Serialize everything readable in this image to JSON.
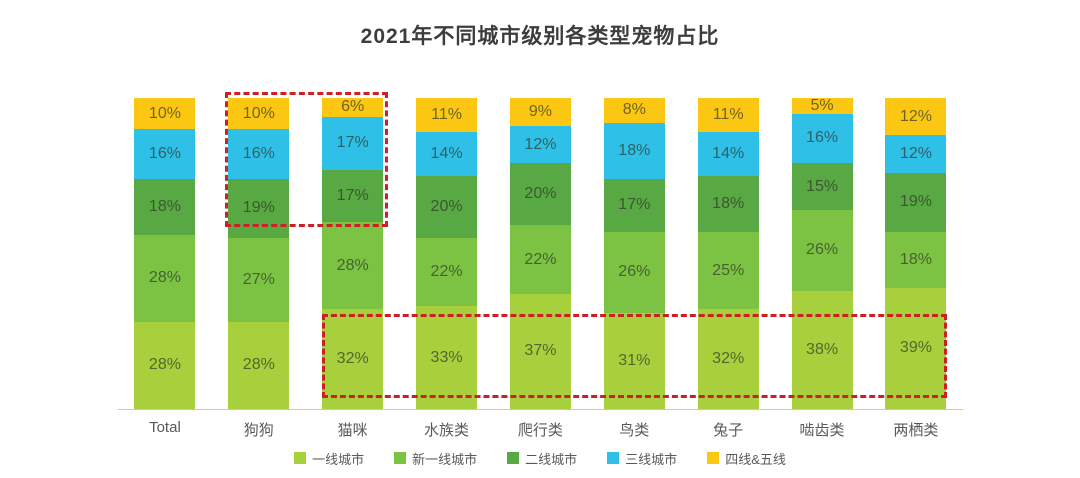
{
  "chart_data": {
    "type": "bar",
    "variant": "stacked-percent-column",
    "title": "2021年不同城市级别各类型宠物占比",
    "unit": "%",
    "ylim": [
      0,
      100
    ],
    "grid": false,
    "legend_position": "bottom",
    "categories": [
      "Total",
      "狗狗",
      "猫咪",
      "水族类",
      "爬行类",
      "鸟类",
      "兔子",
      "啮齿类",
      "两栖类"
    ],
    "series": [
      {
        "name": "一线城市",
        "color": "#a7d03c",
        "values": [
          28,
          28,
          32,
          33,
          37,
          31,
          32,
          38,
          39
        ]
      },
      {
        "name": "新一线城市",
        "color": "#7cc344",
        "values": [
          28,
          27,
          28,
          22,
          22,
          26,
          25,
          26,
          18
        ]
      },
      {
        "name": "二线城市",
        "color": "#58a843",
        "values": [
          18,
          19,
          17,
          20,
          20,
          17,
          18,
          15,
          19
        ]
      },
      {
        "name": "三线城市",
        "color": "#2fc0e8",
        "values": [
          16,
          16,
          17,
          14,
          12,
          18,
          14,
          16,
          12
        ]
      },
      {
        "name": "四线&五线",
        "color": "#fbc712",
        "values": [
          10,
          10,
          6,
          11,
          9,
          8,
          11,
          5,
          12
        ]
      }
    ],
    "annotations": [
      {
        "type": "dashed-rect",
        "color": "#cd2026",
        "highlights": "狗狗与猫咪的二线城市、三线城市、四线&五线占比"
      },
      {
        "type": "dashed-rect",
        "color": "#cd2026",
        "highlights": "猫咪至两栖类的一线城市占比 (32%–39%)"
      }
    ],
    "colors": {
      "title": "#3d3d3d",
      "axis_label": "#595959",
      "axis_line": "#c9c9c9",
      "segment_label": "#4e5248"
    }
  }
}
